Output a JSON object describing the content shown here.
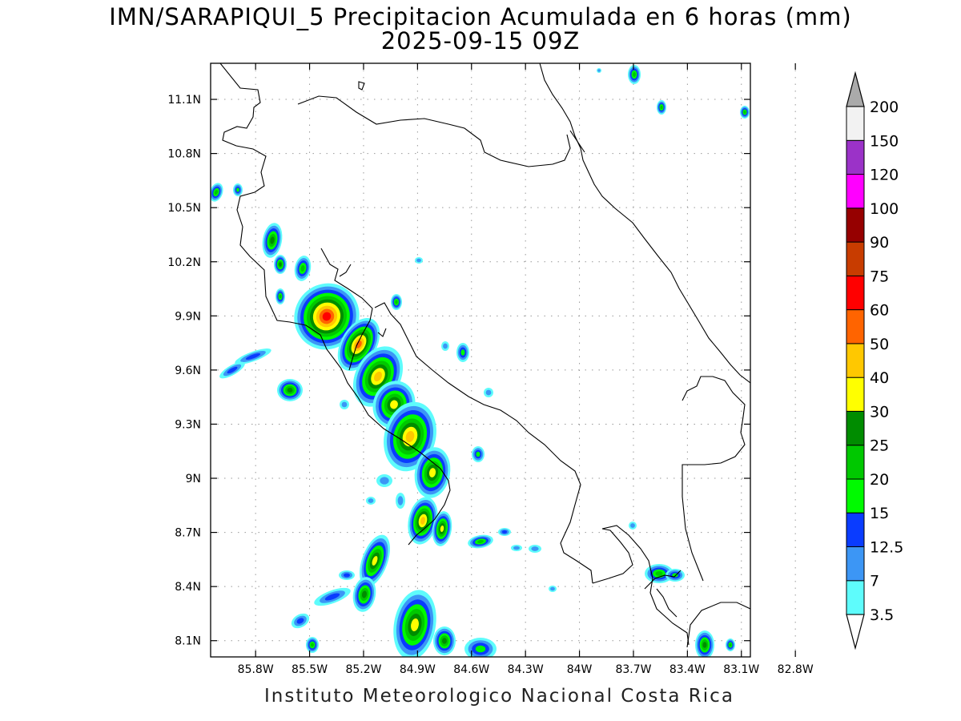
{
  "title": {
    "line1": "IMN/SARAPIQUI_5 Precipitacion Acumulada en 6 horas (mm)",
    "line2": "2025-09-15 09Z"
  },
  "footer": "Instituto Meteorologico Nacional Costa Rica",
  "axes": {
    "x_ticks": [
      "85.8W",
      "85.5W",
      "85.2W",
      "84.9W",
      "84.6W",
      "84.3W",
      "84W",
      "83.7W",
      "83.4W",
      "83.1W",
      "82.8W"
    ],
    "x_values": [
      -85.8,
      -85.5,
      -85.2,
      -84.9,
      -84.6,
      -84.3,
      -84.0,
      -83.7,
      -83.4,
      -83.1,
      -82.8
    ],
    "y_ticks": [
      "11.1N",
      "10.8N",
      "10.5N",
      "10.2N",
      "9.9N",
      "9.6N",
      "9.3N",
      "9N",
      "8.7N",
      "8.4N",
      "8.1N"
    ],
    "y_values": [
      11.1,
      10.8,
      10.5,
      10.2,
      9.9,
      9.6,
      9.3,
      9.0,
      8.7,
      8.4,
      8.1
    ],
    "lon_range": [
      -86.05,
      -83.05
    ],
    "lat_range": [
      8.01,
      11.3
    ],
    "grid": true
  },
  "colorbar": {
    "labels": [
      "3.5",
      "7",
      "12.5",
      "15",
      "20",
      "25",
      "30",
      "40",
      "50",
      "60",
      "75",
      "90",
      "100",
      "120",
      "150",
      "200"
    ],
    "colors": [
      "#5efcfc",
      "#3c96f5",
      "#0a3cff",
      "#00fa00",
      "#00c800",
      "#008c00",
      "#ffff00",
      "#ffc800",
      "#ff6400",
      "#ff0000",
      "#c83c00",
      "#960000",
      "#ff00ff",
      "#9b32c8",
      "#f2f2f2"
    ],
    "under_color": "#ffffff",
    "over_color": "#aaaaaa"
  },
  "colors": {
    "coastline": "#000000",
    "grid": "#999999",
    "frame": "#000000"
  }
}
